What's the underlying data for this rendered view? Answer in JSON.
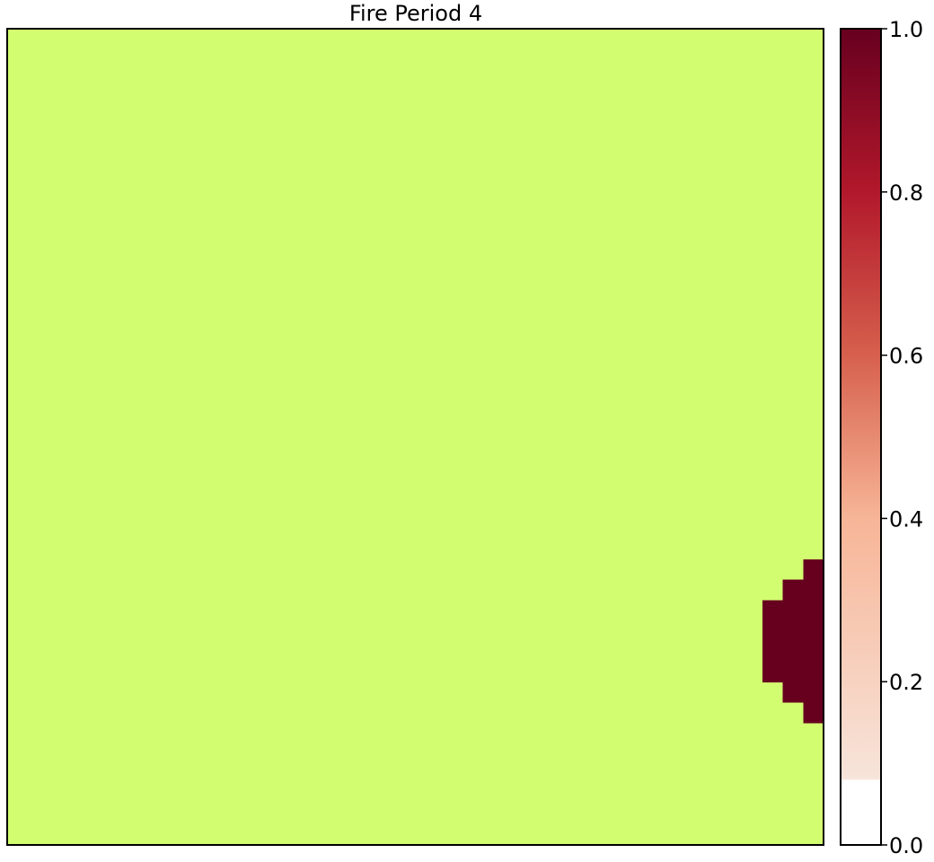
{
  "chart_data": {
    "type": "heatmap",
    "title": "Fire Period 4",
    "xlabel": "",
    "ylabel": "",
    "grid_cols": 40,
    "grid_rows": 40,
    "background_color": "#d3fd70",
    "fire_color": "#67001f",
    "burned_value": 1.0,
    "burned_cells": [
      {
        "row": 26,
        "cols": [
          39
        ]
      },
      {
        "row": 27,
        "cols": [
          38,
          39
        ]
      },
      {
        "row": 28,
        "cols": [
          37,
          38,
          39
        ]
      },
      {
        "row": 29,
        "cols": [
          37,
          38,
          39
        ]
      },
      {
        "row": 30,
        "cols": [
          37,
          38,
          39
        ]
      },
      {
        "row": 31,
        "cols": [
          37,
          38,
          39
        ]
      },
      {
        "row": 32,
        "cols": [
          38,
          39
        ]
      },
      {
        "row": 33,
        "cols": [
          39
        ]
      }
    ],
    "colorbar": {
      "colormap": "RdBu_r (upper half)",
      "min": 0.0,
      "max": 1.0,
      "ticks": [
        "0.0",
        "0.2",
        "0.4",
        "0.6",
        "0.8",
        "1.0"
      ],
      "stops": [
        "#ffffff",
        "#f7e4da",
        "#f7b597",
        "#d6604d",
        "#b2182b",
        "#67001f"
      ]
    }
  }
}
